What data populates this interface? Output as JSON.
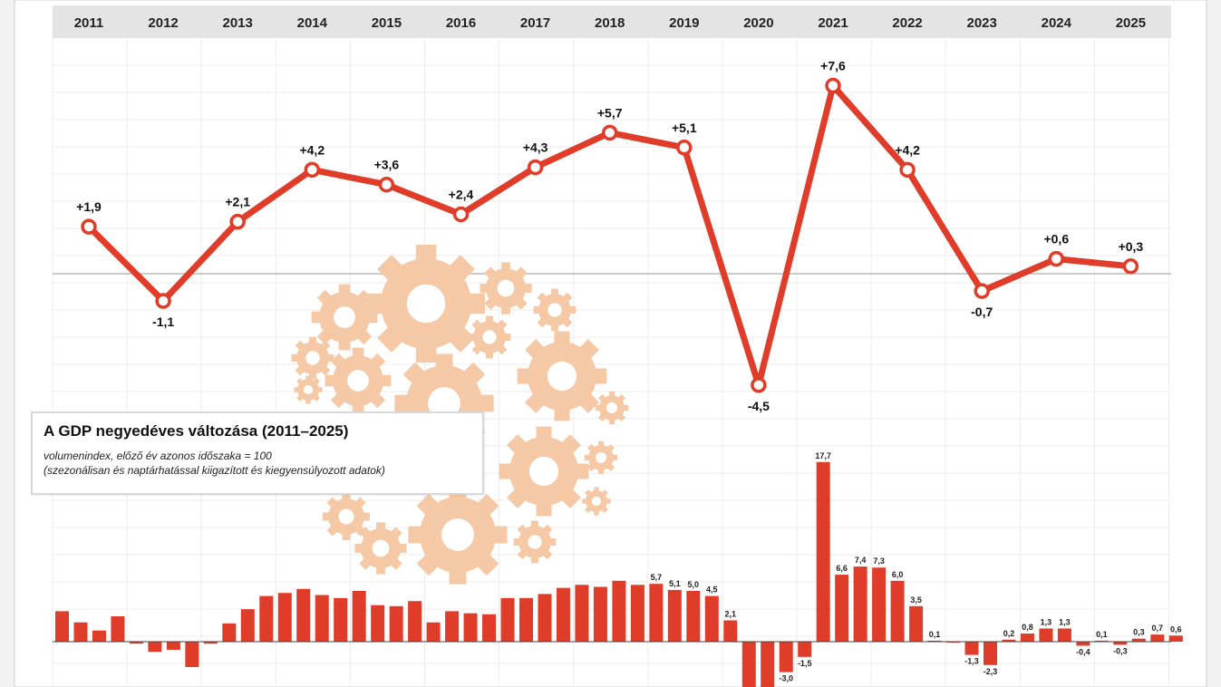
{
  "chart_data": [
    {
      "type": "line",
      "x": [
        "2011",
        "2012",
        "2013",
        "2014",
        "2015",
        "2016",
        "2017",
        "2018",
        "2019",
        "2020",
        "2021",
        "2022",
        "2023",
        "2024",
        "2025"
      ],
      "values": [
        1.9,
        -1.1,
        2.1,
        4.2,
        3.6,
        2.4,
        4.3,
        5.7,
        5.1,
        -4.5,
        7.6,
        4.2,
        -0.7,
        0.6,
        0.3
      ],
      "data_labels": [
        "+1,9",
        "-1,1",
        "+2,1",
        "+4,2",
        "+3,6",
        "+2,4",
        "+4,3",
        "+5,7",
        "+5,1",
        "-4,5",
        "+7,6",
        "+4,2",
        "-0,7",
        "+0,6",
        "+0,3"
      ],
      "baseline": 0,
      "grid": true,
      "series_color": "#e03c2a"
    },
    {
      "type": "bar",
      "title": "A GDP negyedéves változása (2011–2025)",
      "subtitle_lines": [
        "volumenindex, előző év azonos időszaka = 100",
        "(szezonálisan és naptárhatással kiigazított és kiegyensúlyozott adatok)"
      ],
      "values": [
        3.0,
        1.9,
        1.1,
        2.5,
        -0.2,
        -1.0,
        -0.8,
        -2.5,
        -0.2,
        1.8,
        3.2,
        4.5,
        4.8,
        5.2,
        4.6,
        4.3,
        5.0,
        3.6,
        3.5,
        4.0,
        1.9,
        3.0,
        2.8,
        2.7,
        4.3,
        4.3,
        4.7,
        5.3,
        5.6,
        5.4,
        6.0,
        5.6,
        5.7,
        5.1,
        5.0,
        4.5,
        2.1,
        -5.0,
        -4.5,
        -3.0,
        -1.5,
        17.7,
        6.6,
        7.4,
        7.3,
        6.0,
        3.5,
        0.1,
        -0.1,
        -1.3,
        -2.3,
        0.2,
        0.8,
        1.3,
        1.3,
        -0.4,
        0.1,
        -0.3,
        0.3,
        0.7,
        0.6
      ],
      "data_labels": {
        "32": "5,7",
        "33": "5,1",
        "34": "5,0",
        "35": "4,5",
        "36": "2,1",
        "39": "-3,0",
        "40": "-1,5",
        "41": "17,7",
        "42": "6,6",
        "43": "7,4",
        "44": "7,3",
        "45": "6,0",
        "46": "3,5",
        "47": "0,1",
        "49": "-1,3",
        "50": "-2,3",
        "51": "0,2",
        "52": "0,8",
        "53": "1,3",
        "54": "1,3",
        "55": "-0,4",
        "56": "0,1",
        "57": "-0,3",
        "58": "0,3",
        "59": "0,7",
        "60": "0,6"
      },
      "series_color": "#e03c2a"
    }
  ],
  "colors": {
    "accent": "#e03c2a",
    "year_band": "#e4e4e4",
    "grid": "#ececec",
    "gear": "#f5c9a6"
  }
}
